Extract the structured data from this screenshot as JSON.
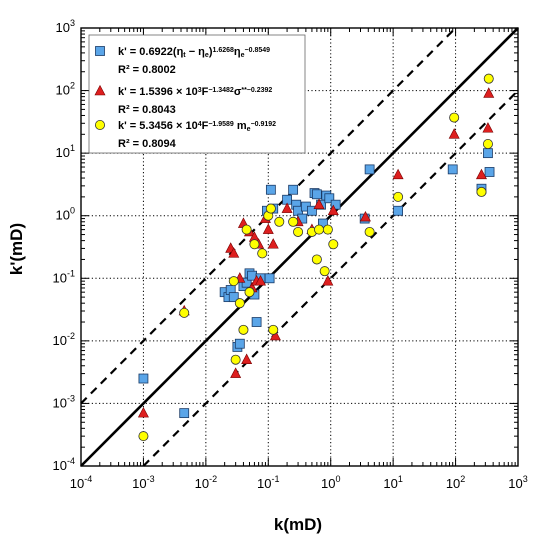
{
  "chart_data": {
    "type": "scatter",
    "x_scale": "log",
    "y_scale": "log",
    "xlim": [
      0.0001,
      1000
    ],
    "ylim": [
      0.0001,
      1000
    ],
    "xlabel": "k(mD)",
    "ylabel": "k'(mD)",
    "grid": true,
    "legend_position": "top-left",
    "x_ticks": [
      {
        "base": "10",
        "exp": "-4",
        "value": 0.0001
      },
      {
        "base": "10",
        "exp": "-3",
        "value": 0.001
      },
      {
        "base": "10",
        "exp": "-2",
        "value": 0.01
      },
      {
        "base": "10",
        "exp": "-1",
        "value": 0.1
      },
      {
        "base": "10",
        "exp": "0",
        "value": 1
      },
      {
        "base": "10",
        "exp": "1",
        "value": 10
      },
      {
        "base": "10",
        "exp": "2",
        "value": 100
      },
      {
        "base": "10",
        "exp": "3",
        "value": 1000
      }
    ],
    "y_ticks": [
      {
        "base": "10",
        "exp": "-4",
        "value": 0.0001
      },
      {
        "base": "10",
        "exp": "-3",
        "value": 0.001
      },
      {
        "base": "10",
        "exp": "-2",
        "value": 0.01
      },
      {
        "base": "10",
        "exp": "-1",
        "value": 0.1
      },
      {
        "base": "10",
        "exp": "0",
        "value": 1
      },
      {
        "base": "10",
        "exp": "1",
        "value": 10
      },
      {
        "base": "10",
        "exp": "2",
        "value": 100
      },
      {
        "base": "10",
        "exp": "3",
        "value": 1000
      }
    ],
    "reference_lines": [
      {
        "style": "solid",
        "factor": 1
      },
      {
        "style": "dashed",
        "factor": 10
      },
      {
        "style": "dashed",
        "factor": 0.1
      }
    ],
    "series": [
      {
        "marker": "square",
        "color": "#5aa5e8",
        "legend": {
          "parts": [
            {
              "t": "k' = 0.6922(η"
            },
            {
              "t": "t",
              "sub": true
            },
            {
              "t": " − η"
            },
            {
              "t": "e",
              "sub": true
            },
            {
              "t": ")"
            },
            {
              "t": "1.6268",
              "sup": true
            },
            {
              "t": "η"
            },
            {
              "t": "e",
              "sub": true
            },
            {
              "t": "−0.8549",
              "sup": true
            }
          ],
          "r2": "R² = 0.8002"
        },
        "points": [
          [
            0.001,
            0.0025
          ],
          [
            0.0045,
            0.0007
          ],
          [
            0.02,
            0.06
          ],
          [
            0.023,
            0.05
          ],
          [
            0.025,
            0.065
          ],
          [
            0.028,
            0.05
          ],
          [
            0.032,
            0.008
          ],
          [
            0.035,
            0.009
          ],
          [
            0.04,
            0.075
          ],
          [
            0.045,
            0.085
          ],
          [
            0.05,
            0.12
          ],
          [
            0.055,
            0.11
          ],
          [
            0.06,
            0.055
          ],
          [
            0.065,
            0.02
          ],
          [
            0.075,
            0.1
          ],
          [
            0.095,
            1.2
          ],
          [
            0.105,
            0.1
          ],
          [
            0.11,
            2.6
          ],
          [
            0.12,
            1.3
          ],
          [
            0.2,
            1.8
          ],
          [
            0.25,
            2.6
          ],
          [
            0.28,
            1.5
          ],
          [
            0.3,
            1.2
          ],
          [
            0.35,
            0.9
          ],
          [
            0.4,
            1.4
          ],
          [
            0.5,
            1.2
          ],
          [
            0.55,
            2.3
          ],
          [
            0.6,
            2.2
          ],
          [
            0.7,
            1.5
          ],
          [
            0.75,
            0.75
          ],
          [
            0.85,
            2.1
          ],
          [
            0.95,
            1.9
          ],
          [
            1.2,
            1.5
          ],
          [
            3.5,
            0.9
          ],
          [
            4.2,
            5.5
          ],
          [
            12,
            1.2
          ],
          [
            90,
            5.5
          ],
          [
            260,
            2.7
          ],
          [
            330,
            10
          ],
          [
            350,
            5
          ]
        ]
      },
      {
        "marker": "triangle",
        "color": "#dd1f1f",
        "legend": {
          "parts": [
            {
              "t": "k' = 1.5396 × 10"
            },
            {
              "t": "3",
              "sup": true
            },
            {
              "t": "F"
            },
            {
              "t": "−1.3482",
              "sup": true
            },
            {
              "t": "σ"
            },
            {
              "t": "**−0.2392",
              "sup": true
            }
          ],
          "r2": "R² = 0.8043"
        },
        "points": [
          [
            0.001,
            0.0007
          ],
          [
            0.0045,
            0.03
          ],
          [
            0.025,
            0.3
          ],
          [
            0.028,
            0.25
          ],
          [
            0.03,
            0.003
          ],
          [
            0.035,
            0.1
          ],
          [
            0.04,
            0.75
          ],
          [
            0.045,
            0.005
          ],
          [
            0.05,
            0.55
          ],
          [
            0.055,
            0.07
          ],
          [
            0.06,
            0.45
          ],
          [
            0.065,
            0.09
          ],
          [
            0.07,
            0.35
          ],
          [
            0.075,
            0.09
          ],
          [
            0.09,
            0.9
          ],
          [
            0.1,
            0.6
          ],
          [
            0.12,
            0.35
          ],
          [
            0.13,
            0.012
          ],
          [
            0.2,
            1.3
          ],
          [
            0.3,
            0.8
          ],
          [
            0.5,
            0.6
          ],
          [
            0.65,
            1.5
          ],
          [
            0.9,
            0.09
          ],
          [
            1.1,
            1.2
          ],
          [
            3.6,
            0.95
          ],
          [
            12,
            4.5
          ],
          [
            95,
            20
          ],
          [
            260,
            4.5
          ],
          [
            330,
            25
          ],
          [
            340,
            90
          ]
        ]
      },
      {
        "marker": "circle",
        "color": "#ffff00",
        "legend": {
          "parts": [
            {
              "t": "k' = 5.3456 × 10"
            },
            {
              "t": "4",
              "sup": true
            },
            {
              "t": "F"
            },
            {
              "t": "−1.9589",
              "sup": true
            },
            {
              "t": " m"
            },
            {
              "t": "e",
              "sub": true
            },
            {
              "t": "−0.9192",
              "sup": true
            }
          ],
          "r2": "R² = 0.8094"
        },
        "points": [
          [
            0.001,
            0.0003
          ],
          [
            0.0045,
            0.028
          ],
          [
            0.028,
            0.09
          ],
          [
            0.03,
            0.005
          ],
          [
            0.035,
            0.04
          ],
          [
            0.04,
            0.015
          ],
          [
            0.045,
            0.6
          ],
          [
            0.05,
            0.06
          ],
          [
            0.06,
            0.35
          ],
          [
            0.08,
            0.25
          ],
          [
            0.1,
            1.0
          ],
          [
            0.11,
            1.3
          ],
          [
            0.12,
            0.015
          ],
          [
            0.15,
            0.8
          ],
          [
            0.25,
            0.8
          ],
          [
            0.3,
            0.55
          ],
          [
            0.5,
            0.55
          ],
          [
            0.6,
            0.2
          ],
          [
            0.65,
            0.6
          ],
          [
            0.8,
            0.13
          ],
          [
            0.9,
            0.6
          ],
          [
            1.1,
            0.35
          ],
          [
            4.2,
            0.55
          ],
          [
            12,
            2.0
          ],
          [
            95,
            37
          ],
          [
            260,
            2.4
          ],
          [
            330,
            14
          ],
          [
            340,
            155
          ]
        ]
      }
    ]
  }
}
